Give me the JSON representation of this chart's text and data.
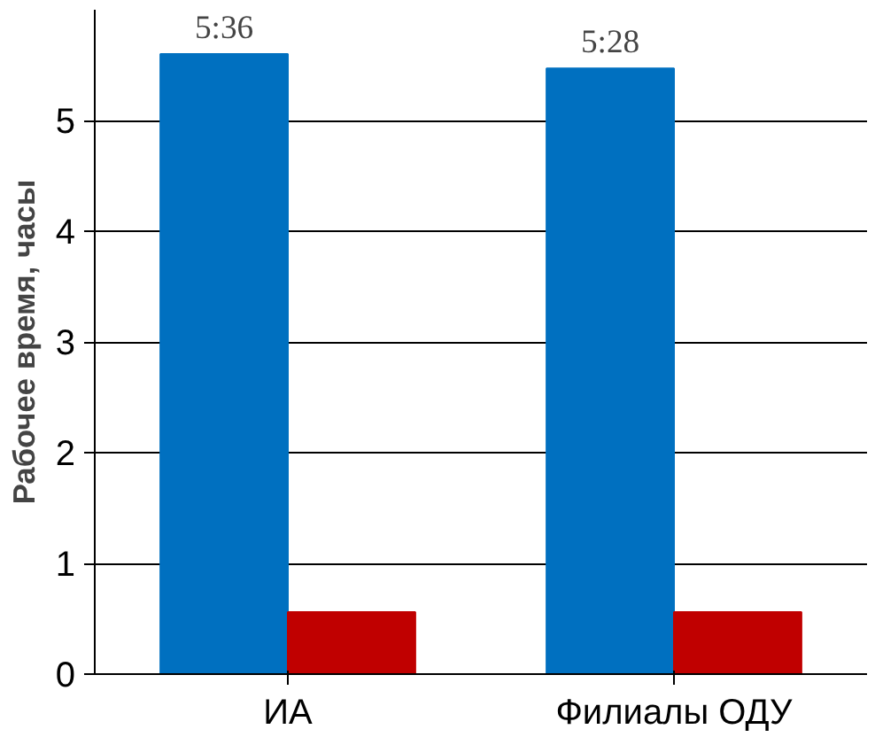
{
  "chart_data": {
    "type": "bar",
    "ylabel": "Рабочее время, часы",
    "categories": [
      "ИА",
      "Филиалы ОДУ"
    ],
    "series": [
      {
        "color": "#0070c0",
        "values": [
          5.6,
          5.47
        ],
        "value_labels": [
          "5:36",
          "5:28"
        ]
      },
      {
        "color": "#c00000",
        "values": [
          0.56,
          0.56
        ]
      }
    ],
    "ylim": [
      0,
      6
    ],
    "yticks": [
      0,
      1,
      2,
      3,
      4,
      5
    ],
    "grid": "y"
  }
}
